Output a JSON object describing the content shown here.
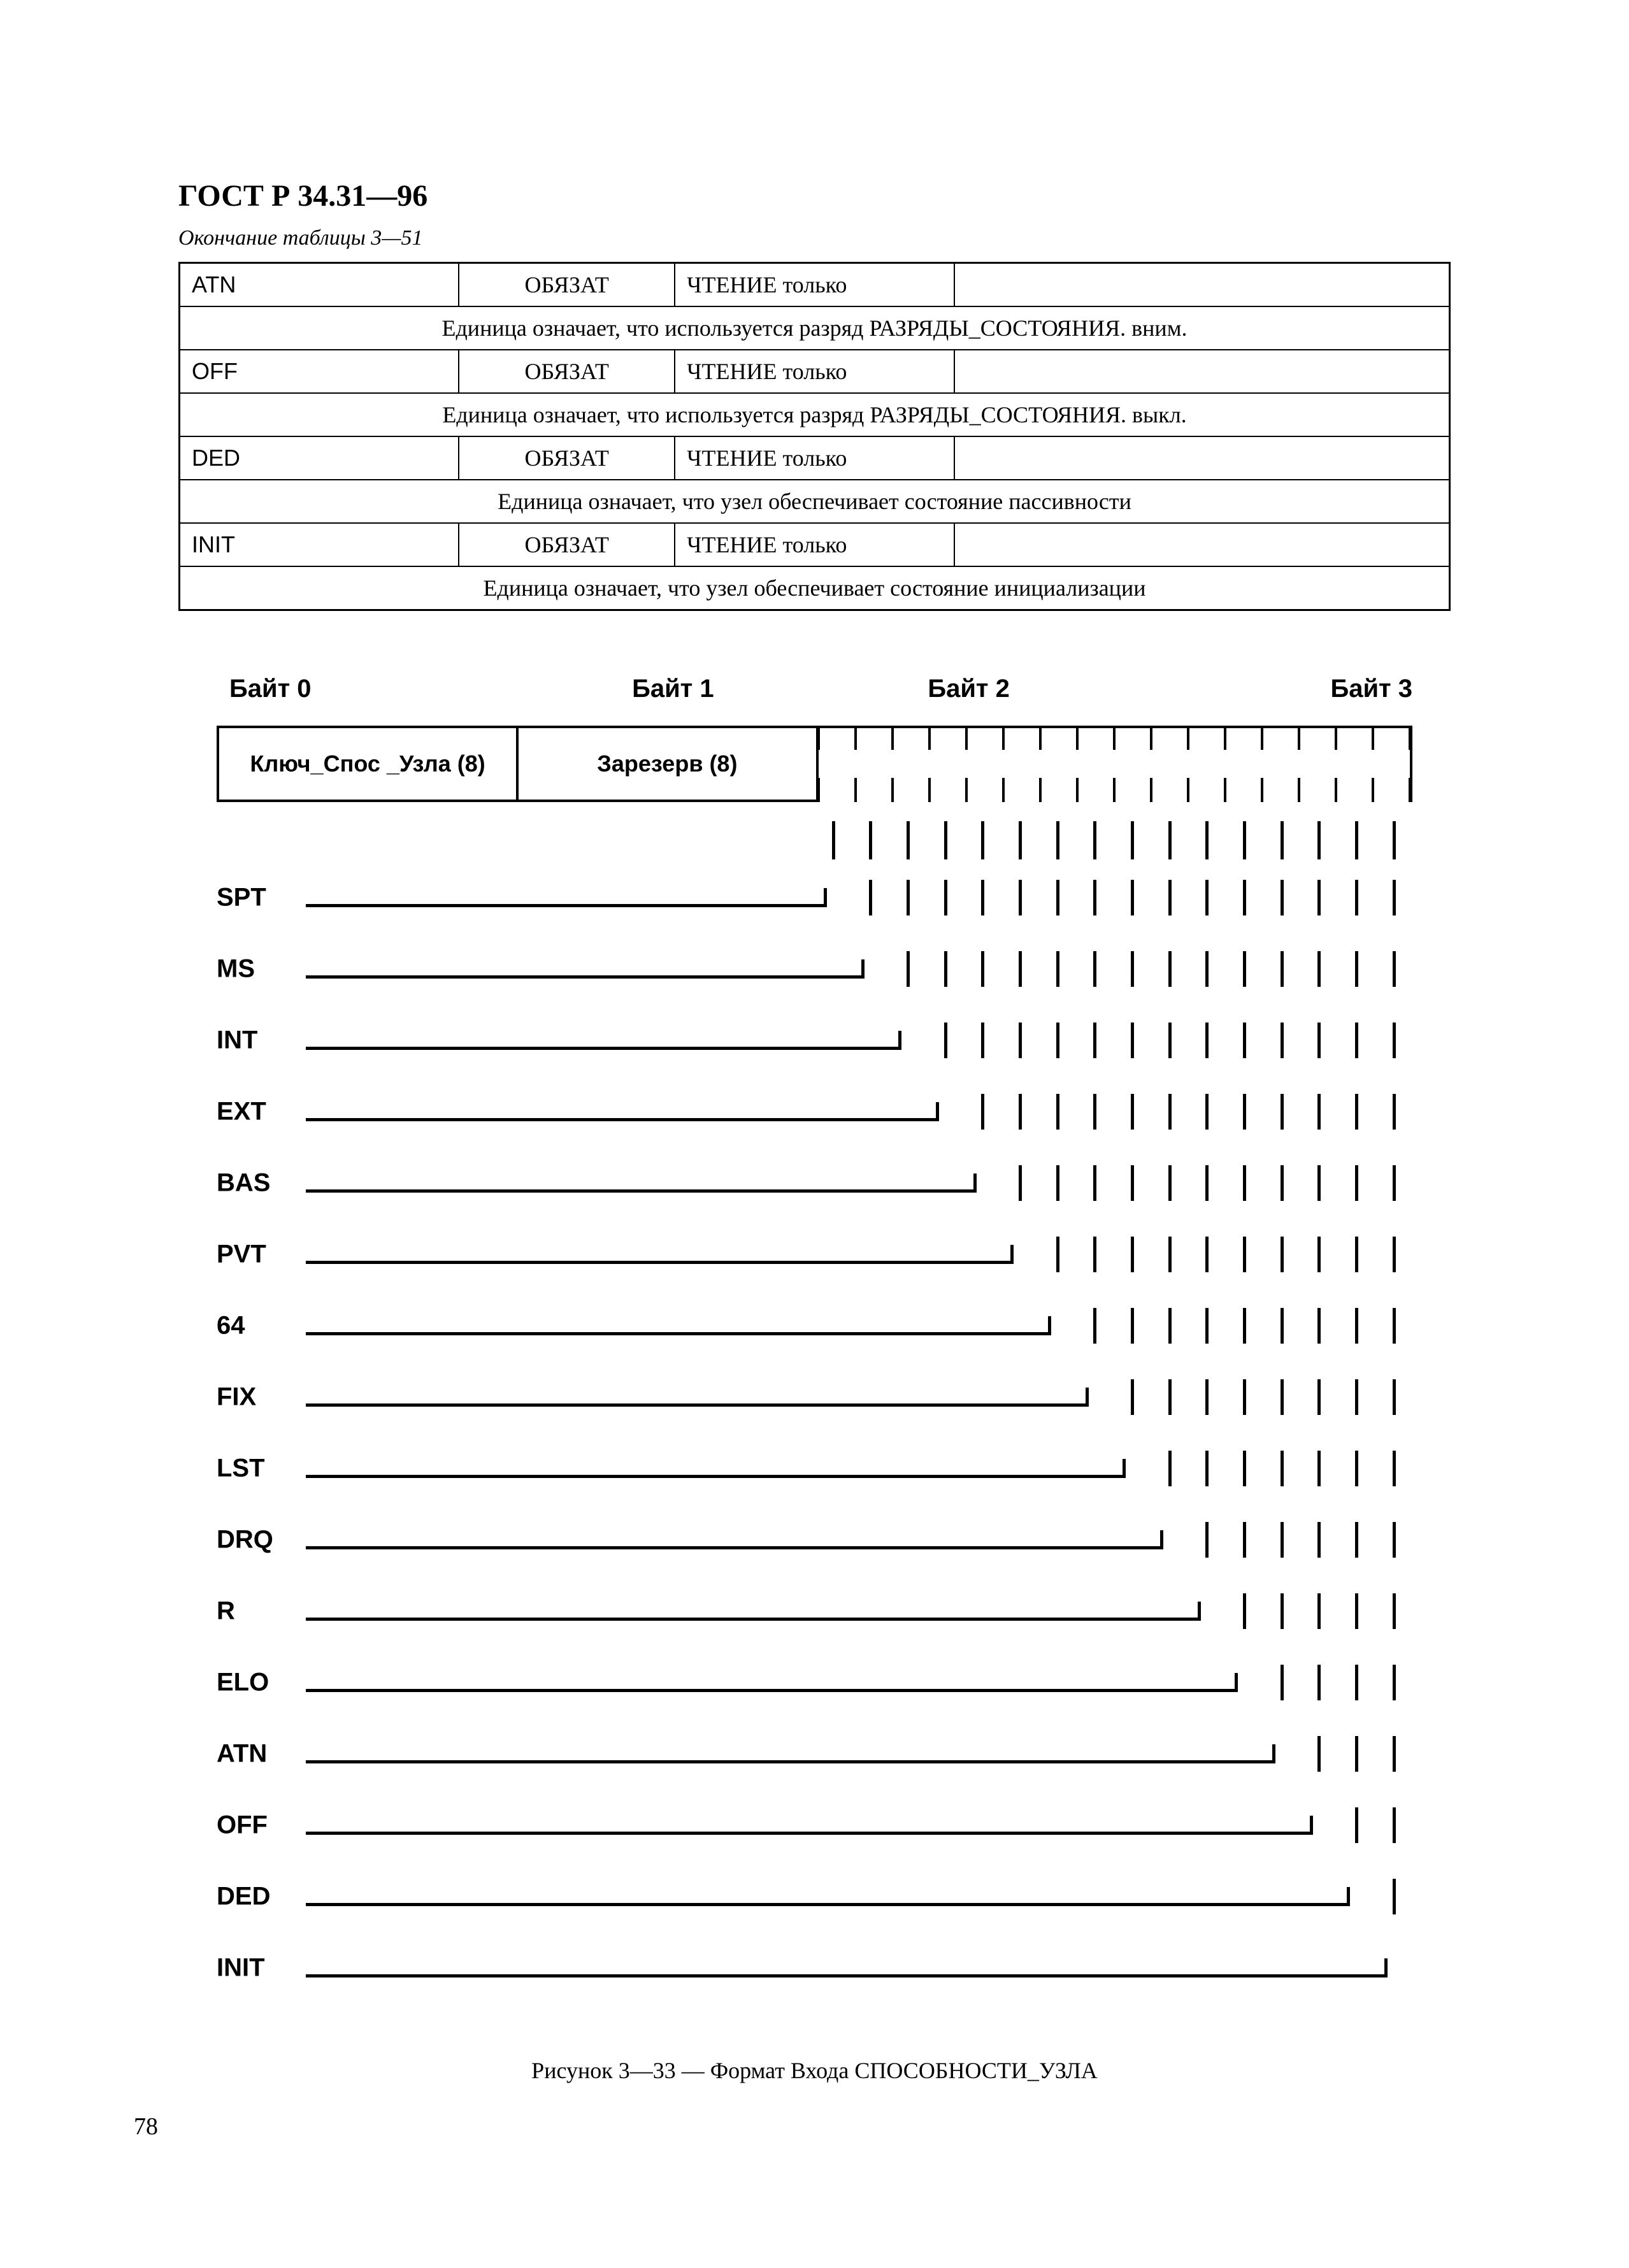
{
  "docId": "ГОСТ Р 34.31—96",
  "tableCaption": "Окончание таблицы 3—51",
  "table": {
    "rows": [
      {
        "name": "ATN",
        "req": "ОБЯЗАТ",
        "access": "ЧТЕНИЕ  только",
        "desc": "Единица означает, что используется разряд РАЗРЯДЫ_СОСТОЯНИЯ. вним."
      },
      {
        "name": "OFF",
        "req": "ОБЯЗАТ",
        "access": "ЧТЕНИЕ  только",
        "desc": "Единица означает, что используется разряд РАЗРЯДЫ_СОСТОЯНИЯ. выкл."
      },
      {
        "name": "DED",
        "req": "ОБЯЗАТ",
        "access": "ЧТЕНИЕ  только",
        "desc": "Единица означает, что узел обеспечивает состояние пассивности"
      },
      {
        "name": "INIT",
        "req": "ОБЯЗАТ",
        "access": "ЧТЕНИЕ  только",
        "desc": "Единица означает, что узел обеспечивает состояние инициализации"
      }
    ]
  },
  "diagram": {
    "byteLabels": [
      "Байт 0",
      "Байт 1",
      "Байт 2",
      "Байт 3"
    ],
    "keyLabel": "Ключ_Спос _Узла (8)",
    "reservedLabel": "Зарезерв (8)",
    "bitCount": 16,
    "bits": [
      "SPT",
      "MS",
      "INT",
      "EXT",
      "BAS",
      "PVT",
      "64",
      "FIX",
      "LST",
      "DRQ",
      "R",
      "ELO",
      "ATN",
      "OFF",
      "DED",
      "INIT"
    ],
    "figCaption": "Рисунок 3—33 — Формат Входа СПОСОБНОСТИ_УЗЛА",
    "rowSpacing": 112,
    "firstRowY": 120,
    "labelX": 0,
    "lineStartX": 140,
    "bitsLeftPct": 50,
    "bitsRightPct": 100
  },
  "pageNumber": "78",
  "colors": {
    "fg": "#000000",
    "bg": "#ffffff"
  }
}
